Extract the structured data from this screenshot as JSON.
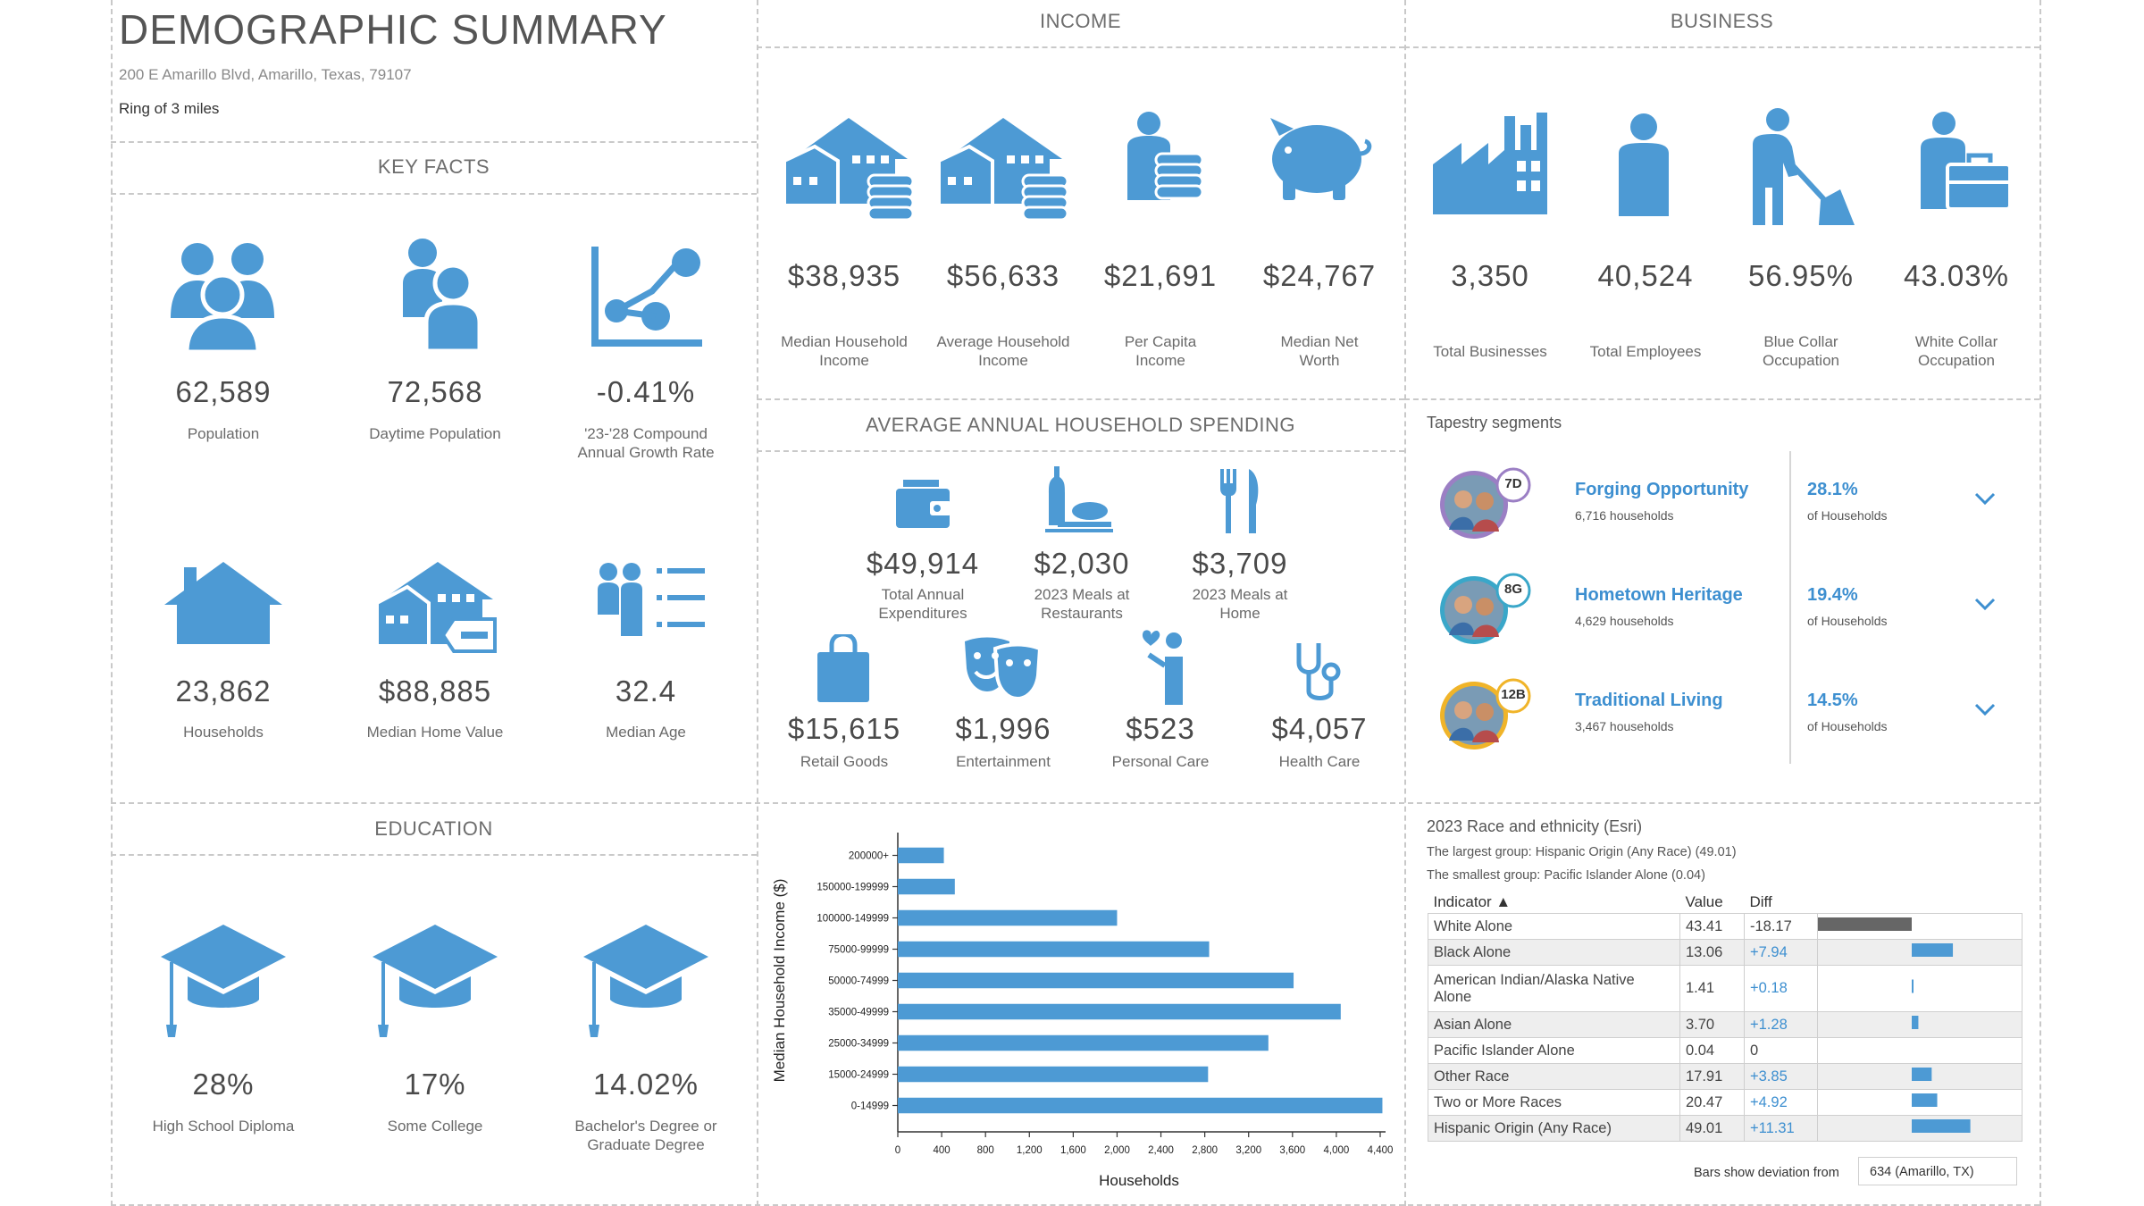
{
  "header": {
    "title": "DEMOGRAPHIC SUMMARY",
    "address": "200 E Amarillo Blvd, Amarillo, Texas, 79107",
    "ring": "Ring of 3 miles"
  },
  "key_facts": {
    "heading": "KEY FACTS",
    "items": [
      {
        "value": "62,589",
        "label": "Population",
        "icon": "people-group-icon"
      },
      {
        "value": "72,568",
        "label": "Daytime Population",
        "icon": "daytime-people-icon"
      },
      {
        "value": "-0.41%",
        "label": "'23-'28 Compound Annual Growth Rate",
        "icon": "trend-line-icon"
      },
      {
        "value": "23,862",
        "label": "Households",
        "icon": "house-icon"
      },
      {
        "value": "$88,885",
        "label": "Median Home Value",
        "icon": "house-price-tag-icon"
      },
      {
        "value": "32.4",
        "label": "Median Age",
        "icon": "people-list-icon"
      }
    ]
  },
  "income": {
    "heading": "INCOME",
    "items": [
      {
        "value": "$38,935",
        "label": "Median Household Income",
        "icon": "house-coins-icon"
      },
      {
        "value": "$56,633",
        "label": "Average Household Income",
        "icon": "house-coins-icon"
      },
      {
        "value": "$21,691",
        "label": "Per Capita Income",
        "icon": "person-coins-icon"
      },
      {
        "value": "$24,767",
        "label": "Median Net Worth",
        "icon": "piggy-bank-icon"
      }
    ]
  },
  "business": {
    "heading": "BUSINESS",
    "items": [
      {
        "value": "3,350",
        "label": "Total Businesses",
        "icon": "factory-icon"
      },
      {
        "value": "40,524",
        "label": "Total Employees",
        "icon": "person-icon"
      },
      {
        "value": "56.95%",
        "label": "Blue Collar Occupation",
        "icon": "worker-shovel-icon"
      },
      {
        "value": "43.03%",
        "label": "White Collar Occupation",
        "icon": "briefcase-person-icon"
      }
    ]
  },
  "spending": {
    "heading": "AVERAGE ANNUAL HOUSEHOLD SPENDING",
    "top": [
      {
        "value": "$49,914",
        "label": "Total Annual Expenditures",
        "icon": "wallet-icon"
      },
      {
        "value": "$2,030",
        "label": "2023 Meals at Restaurants",
        "icon": "restaurant-meal-icon"
      },
      {
        "value": "$3,709",
        "label": "2023 Meals at Home",
        "icon": "fork-knife-icon"
      }
    ],
    "bottom": [
      {
        "value": "$15,615",
        "label": "Retail Goods",
        "icon": "shopping-bag-icon"
      },
      {
        "value": "$1,996",
        "label": "Entertainment",
        "icon": "theater-masks-icon"
      },
      {
        "value": "$523",
        "label": "Personal Care",
        "icon": "personal-care-icon"
      },
      {
        "value": "$4,057",
        "label": "Health Care",
        "icon": "stethoscope-icon"
      }
    ]
  },
  "tapestry": {
    "heading": "Tapestry segments",
    "segments": [
      {
        "code": "7D",
        "name": "Forging Opportunity",
        "households": "6,716 households",
        "pct": "28.1%",
        "pct_label": "of Households",
        "ring_color": "#9b7fc4"
      },
      {
        "code": "8G",
        "name": "Hometown Heritage",
        "households": "4,629 households",
        "pct": "19.4%",
        "pct_label": "of Households",
        "ring_color": "#3aa7c9"
      },
      {
        "code": "12B",
        "name": "Traditional Living",
        "households": "3,467 households",
        "pct": "14.5%",
        "pct_label": "of Households",
        "ring_color": "#f0b429"
      }
    ]
  },
  "education": {
    "heading": "EDUCATION",
    "items": [
      {
        "value": "28%",
        "label": "High School Diploma",
        "icon": "graduation-cap-icon"
      },
      {
        "value": "17%",
        "label": "Some College",
        "icon": "graduation-cap-icon"
      },
      {
        "value": "14.02%",
        "label": "Bachelor's Degree or Graduate Degree",
        "icon": "graduation-cap-icon"
      }
    ]
  },
  "race": {
    "title": "2023 Race and ethnicity (Esri)",
    "largest": "The largest group: Hispanic Origin (Any Race) (49.01)",
    "smallest": "The smallest group: Pacific Islander Alone (0.04)",
    "col_indicator": "Indicator ▲",
    "col_value": "Value",
    "col_diff": "Diff",
    "rows": [
      {
        "indicator": "White Alone",
        "value": "43.41",
        "diff": "-18.17",
        "diff_num": -18.17
      },
      {
        "indicator": "Black Alone",
        "value": "13.06",
        "diff": "+7.94",
        "diff_num": 7.94
      },
      {
        "indicator": "American Indian/Alaska Native Alone",
        "value": "1.41",
        "diff": "+0.18",
        "diff_num": 0.18
      },
      {
        "indicator": "Asian Alone",
        "value": "3.70",
        "diff": "+1.28",
        "diff_num": 1.28
      },
      {
        "indicator": "Pacific Islander Alone",
        "value": "0.04",
        "diff": "0",
        "diff_num": 0
      },
      {
        "indicator": "Other Race",
        "value": "17.91",
        "diff": "+3.85",
        "diff_num": 3.85
      },
      {
        "indicator": "Two or More Races",
        "value": "20.47",
        "diff": "+4.92",
        "diff_num": 4.92
      },
      {
        "indicator": "Hispanic Origin (Any Race)",
        "value": "49.01",
        "diff": "+11.31",
        "diff_num": 11.31
      }
    ],
    "deviation_label": "Bars show deviation from",
    "deviation_select": "634 (Amarillo, TX)",
    "neg_color": "#666666",
    "pos_color": "#4d9ad4"
  },
  "chart_data": {
    "type": "bar",
    "orientation": "horizontal",
    "categories": [
      "200000+",
      "150000-199999",
      "100000-149999",
      "75000-99999",
      "50000-74999",
      "35000-49999",
      "25000-34999",
      "15000-24999",
      "0-14999"
    ],
    "values": [
      420,
      520,
      2000,
      2840,
      3610,
      4040,
      3380,
      2830,
      4420
    ],
    "xlabel": "Households",
    "ylabel": "Median Household Income ($)",
    "xticks": [
      "0",
      "400",
      "800",
      "1,200",
      "1,600",
      "2,000",
      "2,400",
      "2,800",
      "3,200",
      "3,600",
      "4,000",
      "4,400"
    ],
    "xlim": [
      0,
      4400
    ],
    "bar_color": "#4d9ad4"
  }
}
